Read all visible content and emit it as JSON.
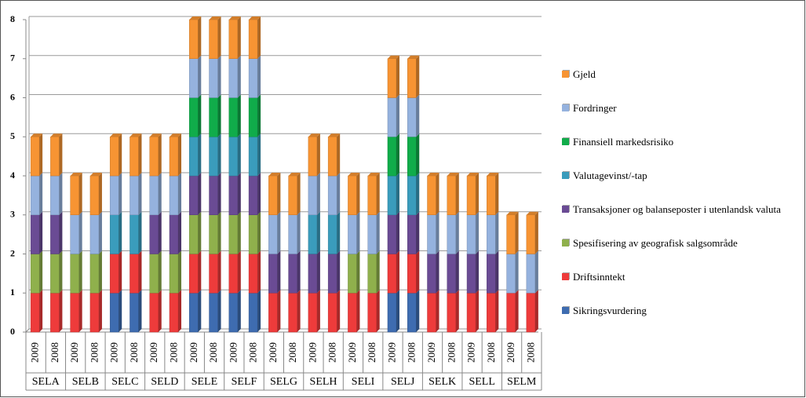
{
  "chart_data": {
    "type": "stacked_bar",
    "categories": [
      "2009",
      "2008",
      "2009",
      "2008",
      "2009",
      "2008",
      "2009",
      "2008",
      "2009",
      "2008",
      "2009",
      "2008",
      "2009",
      "2008",
      "2009",
      "2008",
      "2009",
      "2008",
      "2009",
      "2008",
      "2009",
      "2008",
      "2009",
      "2008",
      "2009",
      "2008"
    ],
    "groups": [
      "SELA",
      "SELB",
      "SELC",
      "SELD",
      "SELE",
      "SELF",
      "SELG",
      "SELH",
      "SELI",
      "SELJ",
      "SELK",
      "SELL",
      "SELM"
    ],
    "series": [
      {
        "name": "Sikringsvurdering",
        "color": "#3e6cb0",
        "values": [
          0,
          0,
          0,
          0,
          1,
          1,
          0,
          0,
          1,
          1,
          1,
          1,
          0,
          0,
          0,
          0,
          0,
          0,
          1,
          1,
          0,
          0,
          0,
          0,
          0,
          0
        ]
      },
      {
        "name": "Driftsinntekt",
        "color": "#ee3b3b",
        "values": [
          1,
          1,
          1,
          1,
          1,
          1,
          1,
          1,
          1,
          1,
          1,
          1,
          1,
          1,
          1,
          1,
          1,
          1,
          1,
          1,
          1,
          1,
          1,
          1,
          1,
          1
        ]
      },
      {
        "name": "Spesifisering av geografisk salgsområde",
        "color": "#8fb04c",
        "values": [
          1,
          1,
          1,
          1,
          0,
          0,
          1,
          1,
          1,
          1,
          1,
          1,
          0,
          0,
          0,
          0,
          1,
          1,
          0,
          0,
          0,
          0,
          0,
          0,
          0,
          0
        ]
      },
      {
        "name": "Transaksjoner og balanseposter i utenlandsk valuta",
        "color": "#6a4b94",
        "values": [
          1,
          1,
          0,
          0,
          0,
          0,
          1,
          1,
          1,
          1,
          1,
          1,
          1,
          1,
          1,
          1,
          0,
          0,
          1,
          1,
          1,
          1,
          1,
          1,
          0,
          0
        ]
      },
      {
        "name": "Valutagevinst/-tap",
        "color": "#3a9cbc",
        "values": [
          0,
          0,
          0,
          0,
          1,
          1,
          0,
          0,
          1,
          1,
          1,
          1,
          0,
          0,
          1,
          1,
          0,
          0,
          1,
          1,
          0,
          0,
          0,
          0,
          0,
          0
        ]
      },
      {
        "name": "Finansiell markedsrisiko",
        "color": "#10ac4a",
        "values": [
          0,
          0,
          0,
          0,
          0,
          0,
          0,
          0,
          1,
          1,
          1,
          1,
          0,
          0,
          0,
          0,
          0,
          0,
          1,
          1,
          0,
          0,
          0,
          0,
          0,
          0
        ]
      },
      {
        "name": "Fordringer",
        "color": "#95b2de",
        "values": [
          1,
          1,
          1,
          1,
          1,
          1,
          1,
          1,
          1,
          1,
          1,
          1,
          1,
          1,
          1,
          1,
          1,
          1,
          1,
          1,
          1,
          1,
          1,
          1,
          1,
          1
        ]
      },
      {
        "name": "Gjeld",
        "color": "#f79433",
        "values": [
          1,
          1,
          1,
          1,
          1,
          1,
          1,
          1,
          1,
          1,
          1,
          1,
          1,
          1,
          1,
          1,
          1,
          1,
          1,
          1,
          1,
          1,
          1,
          1,
          1,
          1
        ]
      }
    ],
    "ylim": [
      0,
      8
    ],
    "yticks": [
      0,
      1,
      2,
      3,
      4,
      5,
      6,
      7,
      8
    ],
    "grid": true,
    "legend": "right"
  }
}
